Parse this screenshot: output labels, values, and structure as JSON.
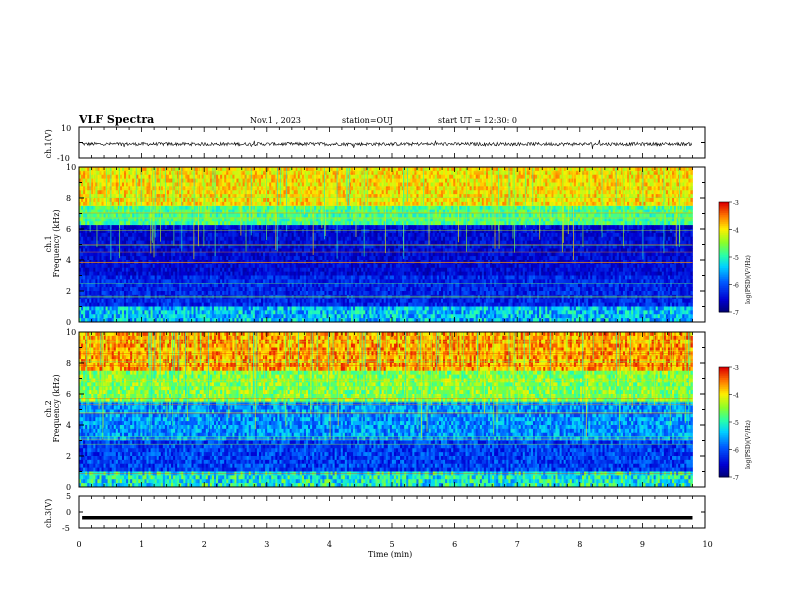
{
  "header": {
    "title": "VLF Spectra",
    "date": "Nov.1 , 2023",
    "station": "station=OUJ",
    "start": "start UT = 12:30: 0"
  },
  "chart_data": [
    {
      "type": "line",
      "panel": "ch1-waveform",
      "ylabel": "ch.1(V)",
      "ylim": [
        -10,
        10
      ],
      "yticks": [
        "10",
        "-10"
      ],
      "xlim": [
        0,
        10
      ],
      "level": -1
    },
    {
      "type": "heatmap",
      "panel": "ch1-spectrogram",
      "ylabel": "ch.1\nFrequency (kHz)",
      "ylim": [
        0,
        10
      ],
      "yticks": [
        "10",
        "8",
        "6",
        "4",
        "2",
        "0"
      ],
      "xlim": [
        0,
        10
      ],
      "data_end": 9.8,
      "colorbar": {
        "label": "log(PSD)(V²/Hz)",
        "range": [
          -7,
          -3
        ],
        "ticks": [
          "-3",
          "-4",
          "-5",
          "-6",
          "-7"
        ]
      }
    },
    {
      "type": "heatmap",
      "panel": "ch2-spectrogram",
      "ylabel": "ch.2\nFrequency (kHz)",
      "ylim": [
        0,
        10
      ],
      "yticks": [
        "10",
        "8",
        "6",
        "4",
        "2",
        "0"
      ],
      "xlim": [
        0,
        10
      ],
      "data_end": 9.8,
      "colorbar": {
        "label": "log(PSD)(V²/Hz)",
        "range": [
          -7,
          -3
        ],
        "ticks": [
          "-3",
          "-4",
          "-5",
          "-6",
          "-7"
        ]
      }
    },
    {
      "type": "line",
      "panel": "ch3-waveform",
      "ylabel": "ch.3(V)",
      "ylim": [
        -5,
        5
      ],
      "yticks": [
        "5",
        "0",
        "-5"
      ],
      "xlim": [
        0,
        10
      ],
      "level": -1.8
    }
  ],
  "xaxis": {
    "label": "Time (min)",
    "ticks": [
      "0",
      "1",
      "2",
      "3",
      "4",
      "5",
      "6",
      "7",
      "8",
      "9",
      "10"
    ]
  }
}
